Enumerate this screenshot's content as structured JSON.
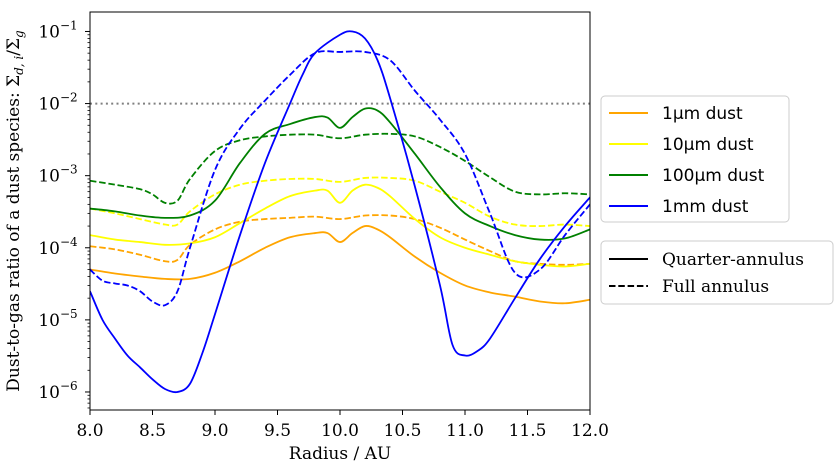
{
  "chart_data": {
    "type": "line",
    "title": "",
    "xlabel": "Radius / AU",
    "ylabel": "Dust-to-gas ratio of a dust species: Σd,i/Σg",
    "xlim": [
      8.0,
      12.0
    ],
    "ylim_log10": [
      -6.25,
      -0.73
    ],
    "yscale": "log",
    "x_ticks": [
      "8.0",
      "8.5",
      "9.0",
      "9.5",
      "10.0",
      "10.5",
      "11.0",
      "11.5",
      "12.0"
    ],
    "y_ticks": [
      {
        "base": "10",
        "exp": "−1",
        "log10": -1
      },
      {
        "base": "10",
        "exp": "−2",
        "log10": -2
      },
      {
        "base": "10",
        "exp": "−3",
        "log10": -3
      },
      {
        "base": "10",
        "exp": "−4",
        "log10": -4
      },
      {
        "base": "10",
        "exp": "−5",
        "log10": -5
      },
      {
        "base": "10",
        "exp": "−6",
        "log10": -6
      }
    ],
    "reference_line": {
      "y": 0.01,
      "color": "#808080",
      "style": "dotted"
    },
    "legend_species": [
      {
        "label": "1μm dust",
        "color": "#FFA500"
      },
      {
        "label": "10μm dust",
        "color": "#FFFF00"
      },
      {
        "label": "100μm dust",
        "color": "#008000"
      },
      {
        "label": "1mm dust",
        "color": "#0000FF"
      }
    ],
    "legend_styles": [
      {
        "label": "Quarter-annulus",
        "style": "solid"
      },
      {
        "label": "Full annulus",
        "style": "dashed"
      }
    ],
    "series": [
      {
        "name": "1μm dust (Quarter-annulus)",
        "color": "#FFA500",
        "style": "solid",
        "x": [
          8.0,
          8.2,
          8.4,
          8.6,
          8.8,
          9.0,
          9.2,
          9.4,
          9.6,
          9.8,
          9.9,
          10.0,
          10.1,
          10.2,
          10.3,
          10.4,
          10.6,
          10.8,
          11.0,
          11.2,
          11.4,
          11.6,
          11.8,
          12.0
        ],
        "y": [
          5e-05,
          4.4e-05,
          4e-05,
          3.7e-05,
          3.7e-05,
          4.5e-05,
          6.5e-05,
          0.0001,
          0.00014,
          0.00016,
          0.00016,
          0.00012,
          0.00016,
          0.0002,
          0.00018,
          0.00014,
          7.5e-05,
          4.5e-05,
          3e-05,
          2.4e-05,
          2.1e-05,
          1.8e-05,
          1.7e-05,
          1.9e-05
        ]
      },
      {
        "name": "1μm dust (Full annulus)",
        "color": "#FFA500",
        "style": "dashed",
        "x": [
          8.0,
          8.2,
          8.4,
          8.6,
          8.7,
          8.8,
          9.0,
          9.2,
          9.4,
          9.6,
          9.8,
          10.0,
          10.2,
          10.4,
          10.6,
          10.8,
          11.0,
          11.2,
          11.4,
          11.6,
          11.8,
          12.0
        ],
        "y": [
          0.000105,
          9.5e-05,
          8e-05,
          6.5e-05,
          6.8e-05,
          0.00011,
          0.00018,
          0.00023,
          0.00025,
          0.00026,
          0.00027,
          0.00025,
          0.00028,
          0.00028,
          0.00025,
          0.00019,
          0.00013,
          9e-05,
          6.5e-05,
          6e-05,
          5.8e-05,
          6e-05
        ]
      },
      {
        "name": "10μm dust (Quarter-annulus)",
        "color": "#FFFF00",
        "style": "solid",
        "x": [
          8.0,
          8.2,
          8.4,
          8.6,
          8.8,
          9.0,
          9.2,
          9.4,
          9.6,
          9.8,
          9.9,
          10.0,
          10.1,
          10.2,
          10.3,
          10.4,
          10.6,
          10.8,
          11.0,
          11.2,
          11.4,
          11.6,
          11.8,
          12.0
        ],
        "y": [
          0.00015,
          0.00013,
          0.00012,
          0.00011,
          0.000115,
          0.00014,
          0.00022,
          0.00035,
          0.00052,
          0.00062,
          0.00062,
          0.00042,
          0.00062,
          0.00075,
          0.00068,
          0.00052,
          0.00025,
          0.00014,
          0.0001,
          8e-05,
          6.5e-05,
          5.8e-05,
          5.5e-05,
          6e-05
        ]
      },
      {
        "name": "10μm dust (Full annulus)",
        "color": "#FFFF00",
        "style": "dashed",
        "x": [
          8.0,
          8.2,
          8.4,
          8.6,
          8.7,
          8.8,
          9.0,
          9.2,
          9.4,
          9.6,
          9.8,
          10.0,
          10.2,
          10.4,
          10.6,
          10.8,
          11.0,
          11.2,
          11.4,
          11.6,
          11.8,
          12.0
        ],
        "y": [
          0.00035,
          0.0003,
          0.00025,
          0.00021,
          0.00021,
          0.00032,
          0.00055,
          0.00075,
          0.00085,
          0.0009,
          0.0009,
          0.00082,
          0.00093,
          0.00093,
          0.00085,
          0.0006,
          0.00042,
          0.00027,
          0.00021,
          0.0002,
          0.00021,
          0.0002
        ]
      },
      {
        "name": "100μm dust (Quarter-annulus)",
        "color": "#008000",
        "style": "solid",
        "x": [
          8.0,
          8.2,
          8.4,
          8.6,
          8.8,
          9.0,
          9.2,
          9.4,
          9.6,
          9.8,
          9.9,
          10.0,
          10.1,
          10.2,
          10.3,
          10.4,
          10.6,
          10.8,
          11.0,
          11.2,
          11.4,
          11.6,
          11.8,
          12.0
        ],
        "y": [
          0.00035,
          0.00032,
          0.00028,
          0.00026,
          0.00028,
          0.00045,
          0.0015,
          0.0038,
          0.0052,
          0.0065,
          0.0064,
          0.0046,
          0.0065,
          0.0085,
          0.008,
          0.0055,
          0.002,
          0.0007,
          0.0003,
          0.0002,
          0.00015,
          0.00013,
          0.000135,
          0.00018
        ]
      },
      {
        "name": "100μm dust (Full annulus)",
        "color": "#008000",
        "style": "dashed",
        "x": [
          8.0,
          8.2,
          8.4,
          8.5,
          8.6,
          8.7,
          8.8,
          9.0,
          9.2,
          9.4,
          9.6,
          9.8,
          10.0,
          10.2,
          10.4,
          10.6,
          10.8,
          11.0,
          11.2,
          11.4,
          11.6,
          11.8,
          12.0
        ],
        "y": [
          0.00085,
          0.00075,
          0.00065,
          0.00055,
          0.00042,
          0.00045,
          0.0009,
          0.0022,
          0.0031,
          0.0035,
          0.0037,
          0.0037,
          0.0033,
          0.0037,
          0.0038,
          0.0035,
          0.0025,
          0.0016,
          0.00095,
          0.0006,
          0.00055,
          0.00057,
          0.00055
        ]
      },
      {
        "name": "1mm dust (Quarter-annulus)",
        "color": "#0000FF",
        "style": "solid",
        "x": [
          8.0,
          8.1,
          8.2,
          8.3,
          8.4,
          8.5,
          8.6,
          8.7,
          8.8,
          8.9,
          9.0,
          9.2,
          9.4,
          9.6,
          9.7,
          9.8,
          10.0,
          10.1,
          10.2,
          10.3,
          10.4,
          10.6,
          10.8,
          10.9,
          11.0,
          11.1,
          11.2,
          11.4,
          11.6,
          11.8,
          12.0
        ],
        "y": [
          2.5e-05,
          1e-05,
          5.5e-06,
          3.2e-06,
          2.2e-06,
          1.5e-06,
          1.1e-06,
          1e-06,
          1.3e-06,
          3.5e-06,
          1.2e-05,
          0.00015,
          0.0015,
          0.01,
          0.025,
          0.05,
          0.09,
          0.1,
          0.08,
          0.04,
          0.012,
          0.0007,
          3e-05,
          4.5e-06,
          3.2e-06,
          3.7e-06,
          5.5e-06,
          2e-05,
          7e-05,
          0.0002,
          0.0005
        ]
      },
      {
        "name": "1mm dust (Full annulus)",
        "color": "#0000FF",
        "style": "dashed",
        "x": [
          8.0,
          8.1,
          8.2,
          8.3,
          8.4,
          8.5,
          8.6,
          8.7,
          8.8,
          9.0,
          9.2,
          9.4,
          9.6,
          9.8,
          10.0,
          10.2,
          10.4,
          10.6,
          10.8,
          11.0,
          11.2,
          11.4,
          11.6,
          11.8,
          12.0
        ],
        "y": [
          5e-05,
          3.5e-05,
          3.2e-05,
          3e-05,
          2.5e-05,
          1.8e-05,
          1.6e-05,
          2.5e-05,
          0.0001,
          0.0012,
          0.0045,
          0.011,
          0.025,
          0.05,
          0.052,
          0.052,
          0.04,
          0.015,
          0.006,
          0.002,
          0.0003,
          4.5e-05,
          5e-05,
          0.00015,
          0.0004
        ]
      }
    ]
  }
}
